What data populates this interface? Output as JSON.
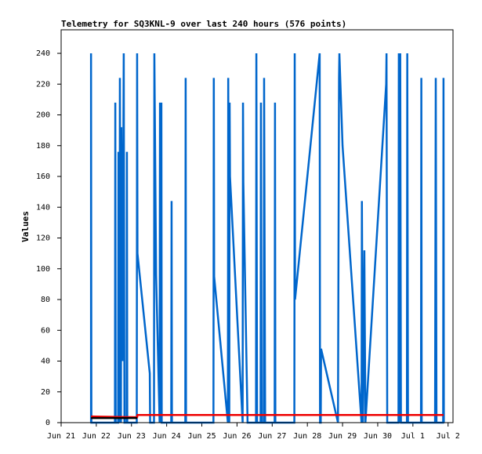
{
  "chart_data": {
    "type": "line",
    "title": "Telemetry for SQ3KNL-9 over last 240 hours (576 points)",
    "ylabel": "Values",
    "xlim": [
      0,
      11.14
    ],
    "ylim": [
      0,
      255.3
    ],
    "xticks": [
      {
        "value": 0,
        "label": "Jun 21"
      },
      {
        "value": 1,
        "label": "Jun 22"
      },
      {
        "value": 2,
        "label": "Jun 23"
      },
      {
        "value": 3,
        "label": "Jun 24"
      },
      {
        "value": 4,
        "label": "Jun 25"
      },
      {
        "value": 5,
        "label": "Jun 26"
      },
      {
        "value": 6,
        "label": "Jun 27"
      },
      {
        "value": 7,
        "label": "Jun 28"
      },
      {
        "value": 8,
        "label": "Jun 29"
      },
      {
        "value": 9,
        "label": "Jun 30"
      },
      {
        "value": 10,
        "label": "Jul 1"
      },
      {
        "value": 11,
        "label": "Jul 2"
      }
    ],
    "yticks": [
      0,
      20,
      40,
      60,
      80,
      100,
      120,
      140,
      160,
      180,
      200,
      220,
      240
    ],
    "series": [
      {
        "color": "#0066cc",
        "x": [
          0.85,
          0.85,
          0.86,
          1.53,
          1.54,
          1.55,
          1.62,
          1.63,
          1.66,
          1.67,
          1.7,
          1.71,
          1.74,
          1.78,
          1.8,
          1.86,
          1.87,
          1.88,
          2.15,
          2.16,
          2.17,
          2.52,
          2.53,
          2.64,
          2.65,
          2.7,
          2.8,
          2.81,
          2.83,
          2.85,
          2.86,
          3.13,
          3.14,
          3.15,
          3.53,
          3.54,
          3.55,
          4.33,
          4.34,
          4.35,
          4.74,
          4.75,
          4.78,
          4.79,
          4.8,
          5.16,
          5.17,
          5.18,
          5.3,
          5.54,
          5.55,
          5.57,
          5.67,
          5.68,
          5.7,
          5.76,
          5.77,
          5.8,
          6.07,
          6.08,
          6.09,
          6.63,
          6.64,
          6.65,
          7.35,
          7.36,
          7.38,
          7.39,
          7.87,
          7.9,
          7.91,
          8.0,
          8.54,
          8.55,
          8.58,
          8.62,
          8.65,
          9.24,
          9.25,
          9.27,
          9.59,
          9.6,
          9.63,
          9.64,
          9.66,
          9.83,
          9.84,
          9.86,
          10.23,
          10.24,
          10.25,
          10.63,
          10.65,
          10.67,
          10.86,
          10.87,
          10.88
        ],
        "values": [
          0,
          240,
          0,
          0,
          208,
          0,
          0,
          176,
          0,
          224,
          0,
          192,
          40,
          240,
          0,
          0,
          176,
          0,
          0,
          240,
          110,
          32,
          0,
          0,
          240,
          96,
          0,
          208,
          0,
          208,
          0,
          0,
          144,
          0,
          0,
          224,
          0,
          0,
          224,
          95,
          0,
          224,
          0,
          208,
          160,
          0,
          208,
          156,
          0,
          0,
          240,
          0,
          0,
          208,
          0,
          0,
          224,
          0,
          0,
          208,
          0,
          0,
          240,
          80,
          240,
          0,
          0,
          48,
          0,
          224,
          240,
          180,
          0,
          144,
          0,
          112,
          0,
          220,
          240,
          0,
          0,
          240,
          0,
          240,
          0,
          0,
          240,
          0,
          0,
          224,
          0,
          0,
          224,
          0,
          0,
          224,
          0
        ]
      },
      {
        "color": "#ee0000",
        "x": [
          0.85,
          2.16,
          2.17,
          10.87
        ],
        "values": [
          4,
          3.5,
          5,
          5
        ]
      },
      {
        "color": "#000000",
        "x": [
          0.85,
          2.16
        ],
        "values": [
          3,
          3
        ]
      }
    ]
  }
}
